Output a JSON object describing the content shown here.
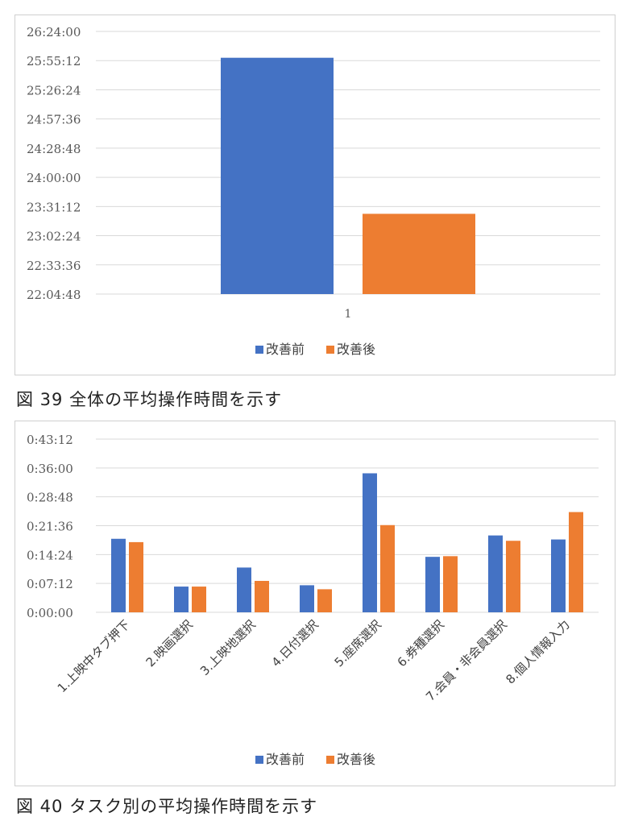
{
  "colors": {
    "before": "#4472C4",
    "after": "#ED7D31",
    "grid": "#D9D9D9"
  },
  "figures": [
    {
      "caption": "図 39 全体の平均操作時間を示す",
      "chart_data": {
        "type": "bar",
        "categories": [
          "1"
        ],
        "series": [
          {
            "name": "改善前",
            "values": [
              "25:58:00"
            ]
          },
          {
            "name": "改善後",
            "values": [
              "23:24:00"
            ]
          }
        ],
        "yticks": [
          "22:04:48",
          "22:33:36",
          "23:02:24",
          "23:31:12",
          "24:00:00",
          "24:28:48",
          "24:57:36",
          "25:26:24",
          "25:55:12",
          "26:24:00"
        ],
        "ylim": [
          "22:04:48",
          "26:24:00"
        ],
        "grid": true,
        "legend": "bottom"
      }
    },
    {
      "caption": "図 40 タスク別の平均操作時間を示す",
      "chart_data": {
        "type": "bar",
        "categories": [
          "1.上映中タブ押下",
          "2.映画選択",
          "3.上映地選択",
          "4.日付選択",
          "5.座席選択",
          "6.券種選択",
          "7.会員・非会員選択",
          "8.個人情報入力"
        ],
        "series": [
          {
            "name": "改善前",
            "values": [
              "0:18:20",
              "0:06:25",
              "0:11:10",
              "0:06:45",
              "0:34:40",
              "0:13:50",
              "0:19:10",
              "0:18:10"
            ]
          },
          {
            "name": "改善後",
            "values": [
              "0:17:30",
              "0:06:25",
              "0:07:50",
              "0:05:45",
              "0:21:45",
              "0:14:00",
              "0:17:50",
              "0:25:00"
            ]
          }
        ],
        "yticks": [
          "0:00:00",
          "0:07:12",
          "0:14:24",
          "0:21:36",
          "0:28:48",
          "0:36:00",
          "0:43:12"
        ],
        "ylim": [
          "0:00:00",
          "0:43:12"
        ],
        "grid": true,
        "legend": "bottom"
      }
    }
  ]
}
